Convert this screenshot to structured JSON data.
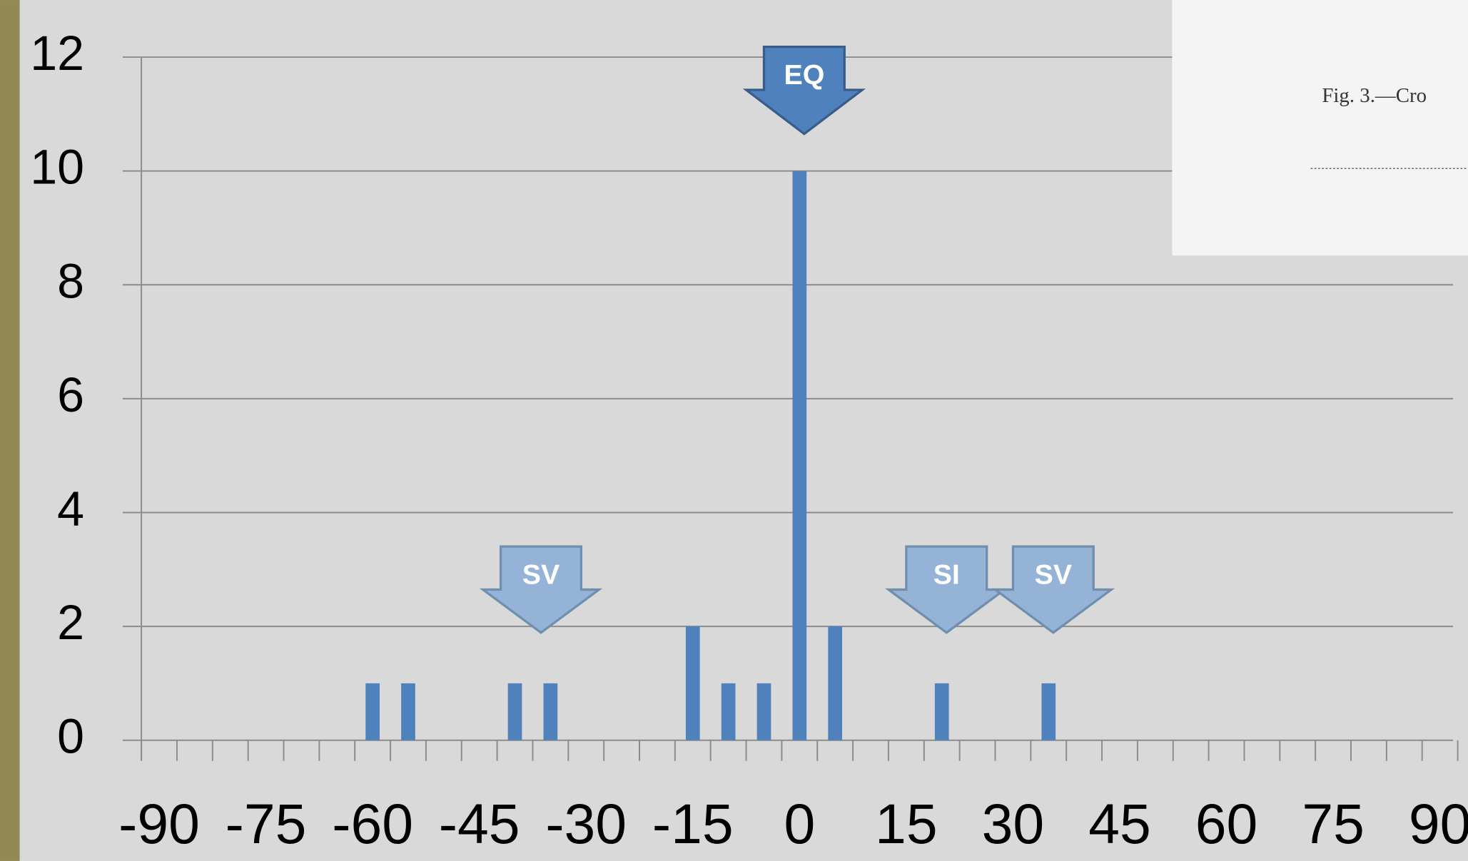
{
  "chart_data": {
    "type": "bar",
    "categories": [
      "-90",
      null,
      null,
      "-75",
      null,
      null,
      "-60",
      null,
      null,
      "-45",
      null,
      null,
      "-30",
      null,
      null,
      "-15",
      null,
      null,
      "0",
      null,
      null,
      "15",
      null,
      null,
      "30",
      null,
      null,
      "45",
      null,
      null,
      "60",
      null,
      null,
      "75",
      null,
      null,
      "90"
    ],
    "values": [
      0,
      0,
      0,
      0,
      0,
      0,
      1,
      1,
      0,
      0,
      1,
      1,
      0,
      0,
      0,
      2,
      1,
      1,
      10,
      2,
      0,
      0,
      1,
      0,
      0,
      1,
      0,
      0,
      0,
      0,
      0,
      0,
      0,
      0,
      0,
      0,
      0
    ],
    "color": "#4f81bd",
    "ylim": [
      0,
      12
    ],
    "yticks": [
      0,
      2,
      4,
      6,
      8,
      10,
      12
    ],
    "grid": true,
    "annotations": [
      {
        "label": "EQ",
        "x": 0,
        "color": "#4f81bd"
      },
      {
        "label": "SV",
        "x": -37,
        "color": "#95b3d7"
      },
      {
        "label": "SI",
        "x": 20,
        "color": "#95b3d7"
      },
      {
        "label": "SV",
        "x": 35,
        "color": "#95b3d7"
      }
    ]
  },
  "inset": {
    "caption": "Fig. 3.—Cro"
  }
}
